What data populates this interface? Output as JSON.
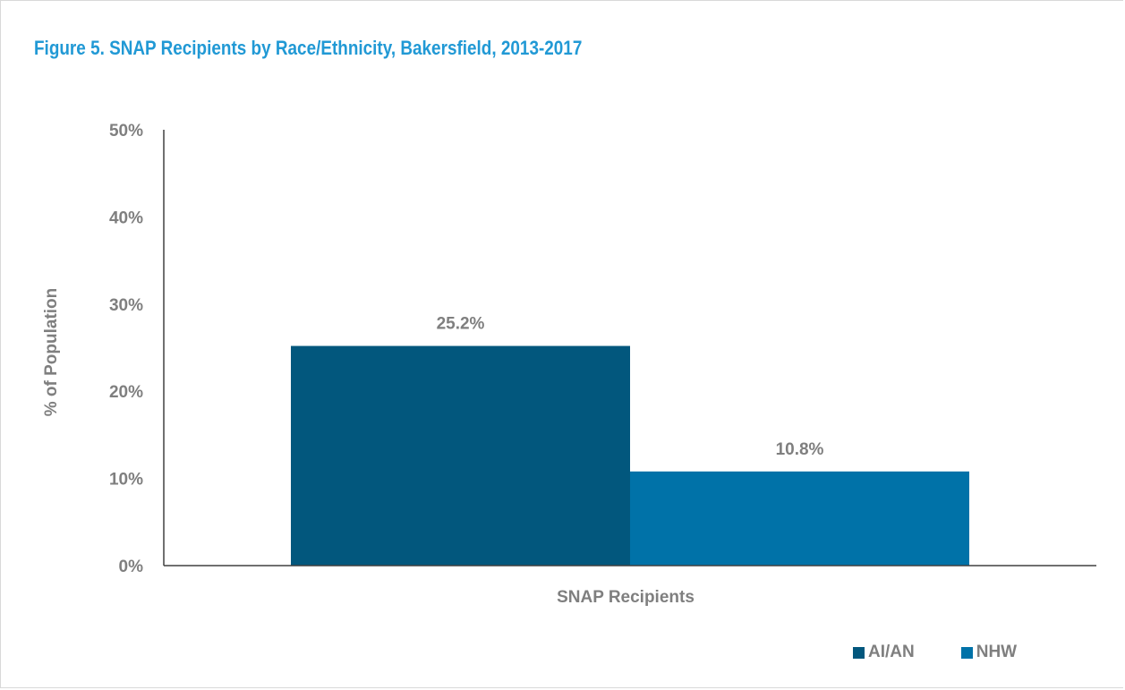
{
  "title": "Figure 5. SNAP Recipients by Race/Ethnicity, Bakersfield, 2013-2017",
  "colors": {
    "title": "#2199d5",
    "text": "#7f7f7f",
    "axis": "#404040"
  },
  "chart_data": {
    "type": "bar",
    "title": "Figure 5. SNAP Recipients by Race/Ethnicity, Bakersfield, 2013-2017",
    "xlabel": "",
    "ylabel": "% of Population",
    "categories": [
      "SNAP Recipients"
    ],
    "category_label": "SNAP Recipients",
    "ylim": [
      0,
      50
    ],
    "yticks": [
      0,
      10,
      20,
      30,
      40,
      50
    ],
    "ytick_labels": [
      "0%",
      "10%",
      "20%",
      "30%",
      "40%",
      "50%"
    ],
    "grid": false,
    "legend_position": "bottom-right",
    "series": [
      {
        "name": "AI/AN",
        "values": [
          25.2
        ],
        "label": "25.2%",
        "color": "#02577d"
      },
      {
        "name": "NHW",
        "values": [
          10.8
        ],
        "label": "10.8%",
        "color": "#0072a8"
      }
    ]
  }
}
